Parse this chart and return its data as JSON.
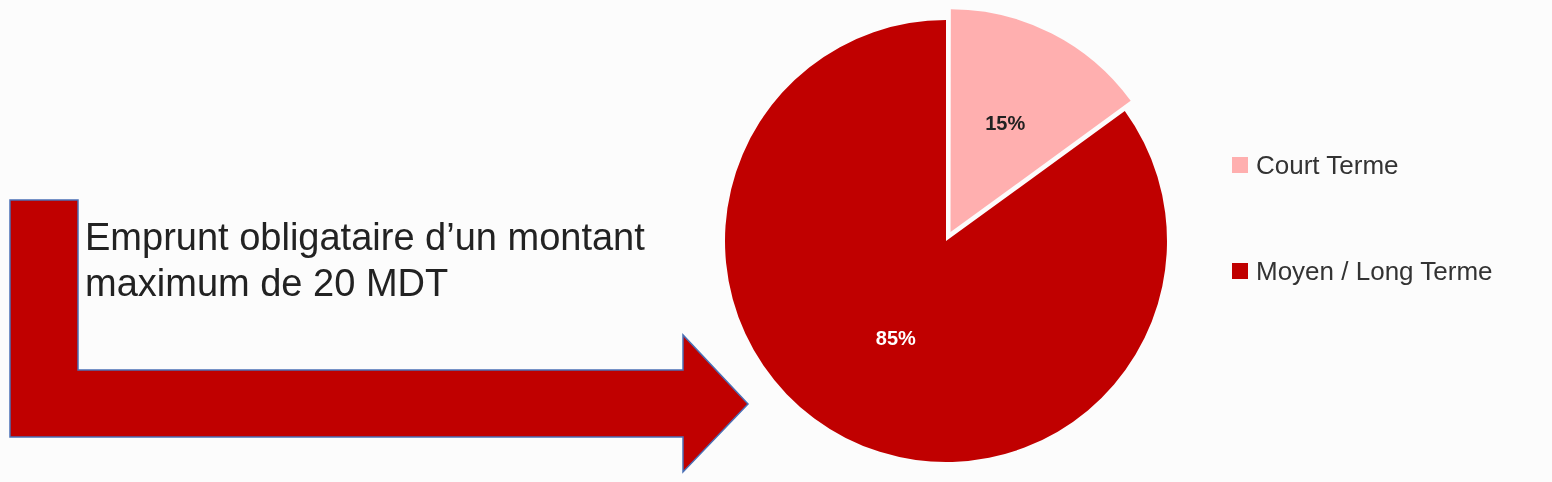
{
  "chart_data": {
    "type": "pie",
    "categories": [
      "Court Terme",
      "Moyen / Long Terme"
    ],
    "values": [
      15,
      85
    ],
    "colors": [
      "#ffafaf",
      "#c00000"
    ],
    "value_labels": [
      "15%",
      "85%"
    ],
    "legend": "right",
    "annotations": [
      "Emprunt obligataire d’un montant maximum de 20 MDT"
    ]
  }
}
